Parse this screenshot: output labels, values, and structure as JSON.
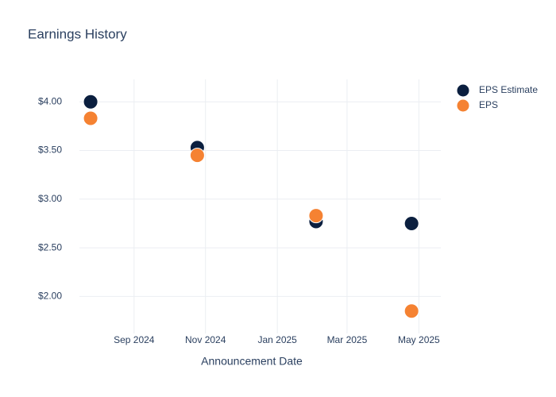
{
  "chart_data": {
    "type": "scatter",
    "title": "Earnings History",
    "x_label": "Announcement Date",
    "x": [
      2024.566,
      2024.814,
      2025.09,
      2025.312
    ],
    "series": [
      {
        "name": "EPS Estimate",
        "color": "#0b1f3f",
        "values": [
          4.0,
          3.53,
          2.77,
          2.75
        ]
      },
      {
        "name": "EPS",
        "color": "#f58232",
        "values": [
          3.83,
          3.45,
          2.83,
          1.85
        ]
      }
    ],
    "xlim": [
      2024.54,
      2025.38
    ],
    "xticks": [
      {
        "value": 2024.667,
        "label": "Sep 2024"
      },
      {
        "value": 2024.833,
        "label": "Nov 2024"
      },
      {
        "value": 2025.0,
        "label": "Jan 2025"
      },
      {
        "value": 2025.162,
        "label": "Mar 2025"
      },
      {
        "value": 2025.329,
        "label": "May 2025"
      }
    ],
    "ylim": [
      1.62,
      4.23
    ],
    "yticks": [
      {
        "value": 2,
        "label": "$2.00"
      },
      {
        "value": 2.5,
        "label": "$2.50"
      },
      {
        "value": 3,
        "label": "$3.00"
      },
      {
        "value": 3.5,
        "label": "$3.50"
      },
      {
        "value": 4,
        "label": "$4.00"
      }
    ],
    "grid": true,
    "legend": "top-right"
  }
}
